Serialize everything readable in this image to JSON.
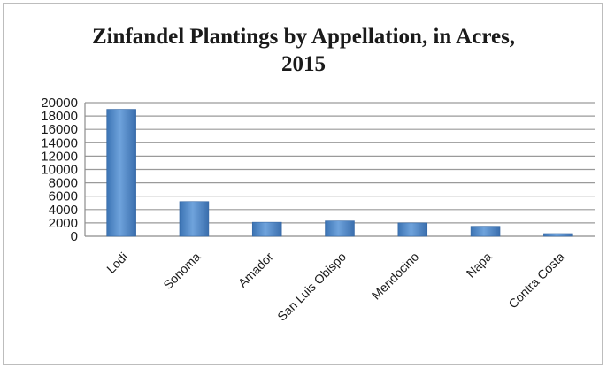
{
  "chart_data": {
    "type": "bar",
    "title_line1": "Zinfandel Plantings by Appellation, in Acres,",
    "title_line2": "2015",
    "categories": [
      "Lodi",
      "Sonoma",
      "Amador",
      "San Luis Obispo",
      "Mendocino",
      "Napa",
      "Contra Costa"
    ],
    "values": [
      19000,
      5200,
      2100,
      2300,
      2000,
      1500,
      400
    ],
    "ylim": [
      0,
      20000
    ],
    "yticks": [
      0,
      2000,
      4000,
      6000,
      8000,
      10000,
      12000,
      14000,
      16000,
      18000,
      20000
    ],
    "xlabel": "",
    "ylabel": "",
    "grid": true,
    "legend": "none",
    "bar_color": "#4a86c5"
  }
}
